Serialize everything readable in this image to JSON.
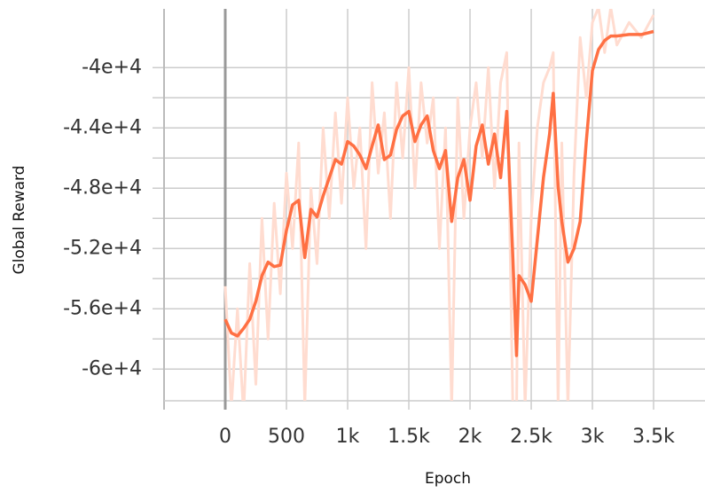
{
  "chart_data": {
    "type": "line",
    "x_label": "Epoch",
    "y_label": "Global Reward",
    "x": [
      0,
      50,
      100,
      150,
      200,
      250,
      300,
      350,
      400,
      450,
      500,
      550,
      600,
      650,
      700,
      750,
      800,
      850,
      900,
      950,
      1000,
      1050,
      1100,
      1150,
      1200,
      1250,
      1300,
      1350,
      1400,
      1450,
      1500,
      1550,
      1600,
      1650,
      1700,
      1750,
      1800,
      1850,
      1900,
      1950,
      2000,
      2050,
      2100,
      2150,
      2200,
      2250,
      2300,
      2350,
      2380,
      2400,
      2450,
      2500,
      2550,
      2600,
      2650,
      2680,
      2720,
      2750,
      2800,
      2850,
      2900,
      2950,
      3000,
      3050,
      3100,
      3150,
      3200,
      3300,
      3400,
      3500
    ],
    "series": [
      {
        "color": "#ffdcd0",
        "width": 3,
        "values": [
          -54500,
          -62500,
          -56000,
          -63000,
          -53000,
          -61000,
          -50000,
          -58000,
          -49000,
          -55000,
          -47000,
          -52000,
          -45000,
          -62500,
          -48000,
          -53000,
          -44000,
          -50000,
          -43000,
          -49000,
          -42000,
          -48000,
          -44000,
          -52000,
          -41000,
          -47000,
          -43000,
          -50000,
          -41000,
          -46000,
          -40000,
          -48000,
          -41000,
          -45000,
          -42000,
          -52000,
          -44000,
          -62500,
          -42000,
          -50000,
          -44000,
          -41000,
          -46000,
          -40000,
          -48000,
          -41000,
          -39000,
          -62500,
          -63000,
          -45000,
          -62500,
          -50000,
          -44000,
          -41000,
          -40000,
          -39000,
          -62500,
          -45000,
          -62500,
          -47000,
          -38000,
          -42000,
          -37000,
          -36000,
          -39000,
          -36000,
          -38500,
          -37000,
          -38000,
          -36500
        ]
      },
      {
        "color": "#ff7043",
        "width": 3.5,
        "values": [
          -56700,
          -57600,
          -57800,
          -57300,
          -56700,
          -55500,
          -53800,
          -52900,
          -53200,
          -53100,
          -50800,
          -49100,
          -48800,
          -52600,
          -49400,
          -49900,
          -48500,
          -47300,
          -46100,
          -46400,
          -44900,
          -45200,
          -45800,
          -46700,
          -45200,
          -43800,
          -46100,
          -45800,
          -44100,
          -43200,
          -42900,
          -44900,
          -43800,
          -43200,
          -45500,
          -46700,
          -45500,
          -50200,
          -47300,
          -46100,
          -48800,
          -45200,
          -43800,
          -46400,
          -44400,
          -47300,
          -42900,
          -52600,
          -59100,
          -53800,
          -54400,
          -55500,
          -51400,
          -47300,
          -44400,
          -41700,
          -47900,
          -50200,
          -52900,
          -52000,
          -50200,
          -44900,
          -40200,
          -38800,
          -38200,
          -37900,
          -37900,
          -37800,
          -37800,
          -37600
        ]
      }
    ],
    "xlim": [
      -500,
      3920
    ],
    "ylim": [
      -62100,
      -36100
    ],
    "xticks": [
      0,
      500,
      {
        "value": 1000,
        "label": "1k"
      },
      {
        "value": 1500,
        "label": "1.5k"
      },
      {
        "value": 2000,
        "label": "2k"
      },
      {
        "value": 2500,
        "label": "2.5k"
      },
      {
        "value": 3000,
        "label": "3k"
      },
      {
        "value": 3500,
        "label": "3.5k"
      }
    ],
    "yticks": [
      {
        "value": -40000,
        "label": "-4e+4"
      },
      {
        "value": -44000,
        "label": "-4.4e+4"
      },
      {
        "value": -48000,
        "label": "-4.8e+4"
      },
      {
        "value": -52000,
        "label": "-5.2e+4"
      },
      {
        "value": -56000,
        "label": "-5.6e+4"
      },
      {
        "value": -60000,
        "label": "-6e+4"
      }
    ],
    "grid": true
  }
}
